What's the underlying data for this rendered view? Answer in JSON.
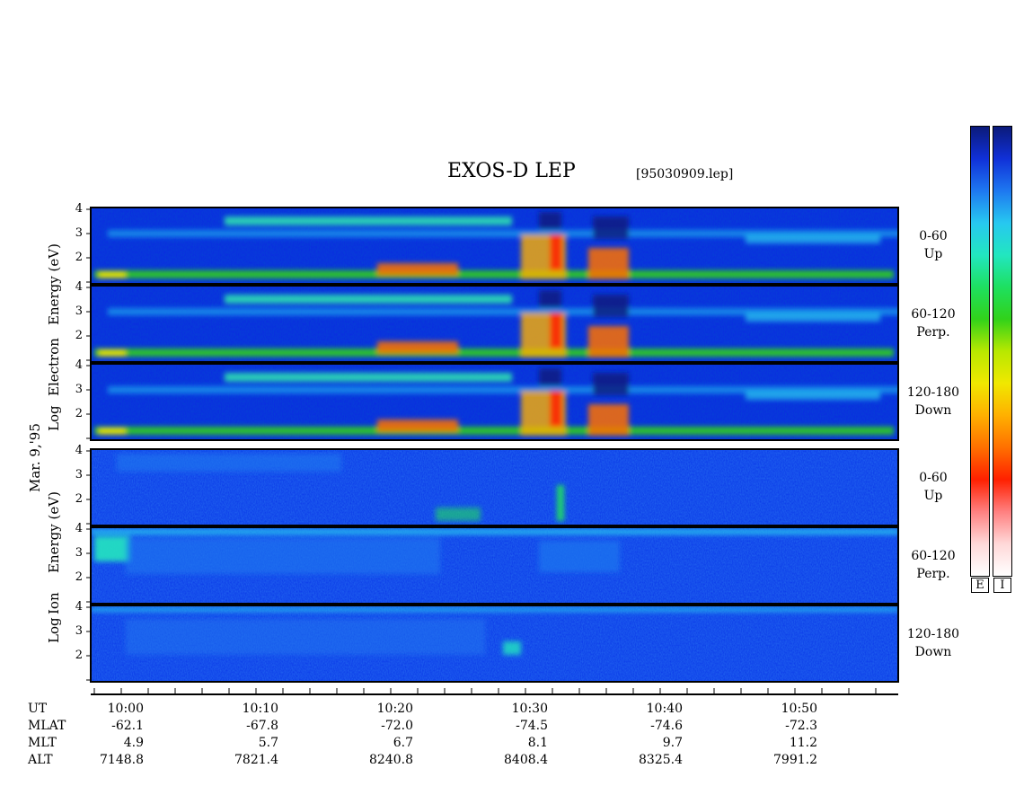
{
  "header": {
    "title": "EXOS-D LEP",
    "file": "[95030909.lep]"
  },
  "date_label": "Mar. 9,'95",
  "electron_label": {
    "line1": "Log",
    "line2": "Electron",
    "line3": "Energy (eV)"
  },
  "ion_label": {
    "line1": "Log",
    "line2": "Ion",
    "line3": "Energy (eV)"
  },
  "channels": [
    {
      "name": "0-60",
      "dir": "Up"
    },
    {
      "name": "60-120",
      "dir": "Perp."
    },
    {
      "name": "120-180",
      "dir": "Down"
    },
    {
      "name": "0-60",
      "dir": "Up"
    },
    {
      "name": "60-120",
      "dir": "Perp."
    },
    {
      "name": "120-180",
      "dir": "Down"
    }
  ],
  "colorbar": {
    "left_label": "E",
    "right_label": "I",
    "colors": [
      "#0b1a7a",
      "#1030d8",
      "#1e78f0",
      "#27c8f0",
      "#22e6c0",
      "#1ee060",
      "#31d21a",
      "#b8e800",
      "#f0e800",
      "#ffb000",
      "#ff7000",
      "#ff2000",
      "#ff8080",
      "#ffd8d8",
      "#ffffff"
    ]
  },
  "chart_data": {
    "type": "heatmap",
    "title": "EXOS-D LEP",
    "x_ticks": [
      "10:00",
      "10:10",
      "10:20",
      "10:30",
      "10:40",
      "10:50"
    ],
    "y_ticks": [
      "4",
      "3",
      "2"
    ],
    "ylabel_electron": "Log Electron Energy (eV)",
    "ylabel_ion": "Log Ion Energy (eV)",
    "series": [
      {
        "name": "Electron 0-60 Up"
      },
      {
        "name": "Electron 60-120 Perp."
      },
      {
        "name": "Electron 120-180 Down"
      },
      {
        "name": "Ion 0-60 Up"
      },
      {
        "name": "Ion 60-120 Perp."
      },
      {
        "name": "Ion 120-180 Down"
      }
    ]
  },
  "footer": {
    "ut": {
      "label": "UT",
      "values": [
        "10:00",
        "10:10",
        "10:20",
        "10:30",
        "10:40",
        "10:50"
      ]
    },
    "rows": [
      {
        "label": "MLAT",
        "values": [
          "-62.1",
          "-67.8",
          "-72.0",
          "-74.5",
          "-74.6",
          "-72.3"
        ]
      },
      {
        "label": "MLT",
        "values": [
          "4.9",
          "5.7",
          "6.7",
          "8.1",
          "9.7",
          "11.2"
        ]
      },
      {
        "label": "ALT",
        "values": [
          "7148.8",
          "7821.4",
          "8240.8",
          "8408.4",
          "8325.4",
          "7991.2"
        ]
      }
    ]
  }
}
